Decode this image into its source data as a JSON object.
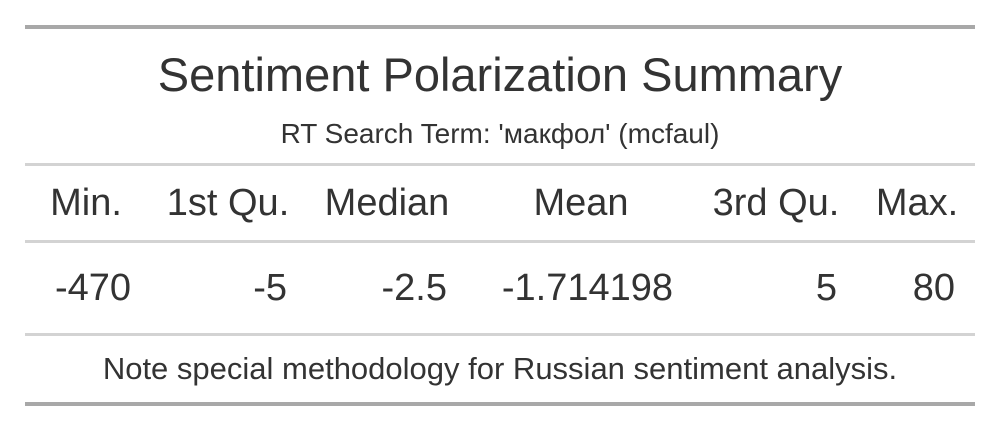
{
  "chart_data": {
    "type": "table",
    "title": "Sentiment Polarization Summary",
    "subtitle": "RT Search Term: 'макфол' (mcfaul)",
    "columns": [
      "Min.",
      "1st Qu.",
      "Median",
      "Mean",
      "3rd Qu.",
      "Max."
    ],
    "rows": [
      [
        "-470",
        "-5",
        "-2.5",
        "-1.714198",
        "5",
        "80"
      ]
    ],
    "footnote": "Note special methodology for Russian sentiment analysis."
  }
}
